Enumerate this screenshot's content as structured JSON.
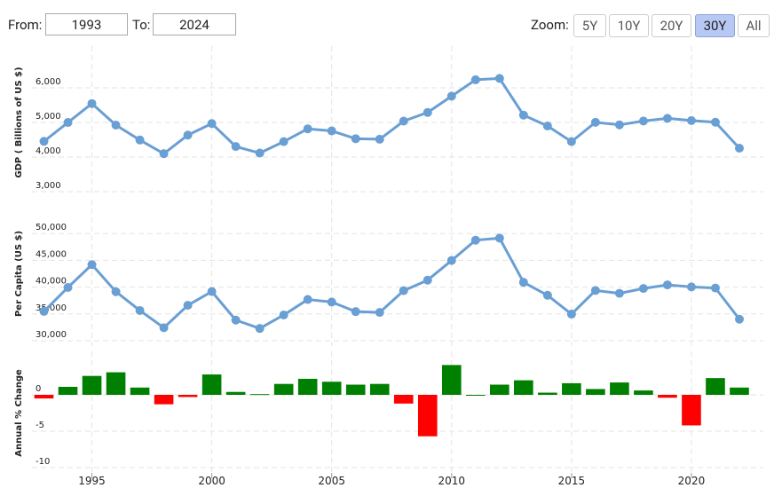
{
  "controls": {
    "from_label": "From:",
    "from": "1993",
    "to_label": "To:",
    "to": "2024",
    "zoom_label": "Zoom:",
    "zoom_options": [
      "5Y",
      "10Y",
      "20Y",
      "30Y",
      "All"
    ],
    "selected_zoom_index": 3
  },
  "chart_data": [
    {
      "type": "line",
      "y_label": "GDP ( Billions of US $)",
      "color": "#6a9fd4",
      "x": [
        1993,
        1994,
        1995,
        1996,
        1997,
        1998,
        1999,
        2000,
        2001,
        2002,
        2003,
        2004,
        2005,
        2006,
        2007,
        2008,
        2009,
        2010,
        2011,
        2012,
        2013,
        2014,
        2015,
        2016,
        2017,
        2018,
        2019,
        2020,
        2021,
        2022
      ],
      "values": [
        4454,
        4999,
        5546,
        4923,
        4492,
        4098,
        4635,
        4968,
        4304,
        4115,
        4446,
        4815,
        4755,
        4530,
        4515,
        5038,
        5289,
        5759,
        6233,
        6272,
        5212,
        4897,
        4445,
        5004,
        4931,
        5041,
        5118,
        5055,
        5006,
        4256
      ],
      "xlim": [
        1992.5,
        2023
      ],
      "xticks": [
        1995,
        2000,
        2005,
        2010,
        2015,
        2020
      ],
      "ylim": [
        3000,
        7000
      ],
      "yticks": [
        {
          "value": 3000,
          "label": "3,000"
        },
        {
          "value": 4000,
          "label": "4,000"
        },
        {
          "value": 5000,
          "label": "5,000"
        },
        {
          "value": 6000,
          "label": "6,000"
        }
      ],
      "grid": true
    },
    {
      "type": "line",
      "y_label": "Per Capita (US $)",
      "color": "#6a9fd4",
      "x": [
        1993,
        1994,
        1995,
        1996,
        1997,
        1998,
        1999,
        2000,
        2001,
        2002,
        2003,
        2004,
        2005,
        2006,
        2007,
        2008,
        2009,
        2010,
        2011,
        2012,
        2013,
        2014,
        2015,
        2016,
        2017,
        2018,
        2019,
        2020,
        2021,
        2022
      ],
      "values": [
        35478,
        39934,
        44198,
        39150,
        35636,
        32424,
        36610,
        39169,
        33846,
        32289,
        34808,
        37689,
        37218,
        35434,
        35275,
        39339,
        41309,
        44968,
        48760,
        49145,
        40898,
        38475,
        34961,
        39375,
        38834,
        39751,
        40416,
        40041,
        39827,
        34017
      ],
      "xlim": [
        1992.5,
        2023
      ],
      "xticks": [
        1995,
        2000,
        2005,
        2010,
        2015,
        2020
      ],
      "ylim": [
        30000,
        55000
      ],
      "yticks": [
        {
          "value": 30000,
          "label": "30,000"
        },
        {
          "value": 35000,
          "label": "35,000"
        },
        {
          "value": 40000,
          "label": "40,000"
        },
        {
          "value": 45000,
          "label": "45,000"
        },
        {
          "value": 50000,
          "label": "50,000"
        }
      ],
      "grid": true
    },
    {
      "type": "bar",
      "y_label": "Annual % Change",
      "positive_color": "#008000",
      "negative_color": "#ff0000",
      "x": [
        1993,
        1994,
        1995,
        1996,
        1997,
        1998,
        1999,
        2000,
        2001,
        2002,
        2003,
        2004,
        2005,
        2006,
        2007,
        2008,
        2009,
        2010,
        2011,
        2012,
        2013,
        2014,
        2015,
        2016,
        2017,
        2018,
        2019,
        2020,
        2021,
        2022
      ],
      "values": [
        -0.5,
        1.1,
        2.6,
        3.1,
        1.0,
        -1.3,
        -0.3,
        2.8,
        0.4,
        0.1,
        1.5,
        2.2,
        1.8,
        1.4,
        1.5,
        -1.2,
        -5.7,
        4.1,
        0.0,
        1.4,
        2.0,
        0.3,
        1.6,
        0.8,
        1.7,
        0.6,
        -0.4,
        -4.2,
        2.3,
        1.0
      ],
      "xlim": [
        1992.5,
        2023
      ],
      "xticks": [
        1995,
        2000,
        2005,
        2010,
        2015,
        2020
      ],
      "ylim": [
        -10,
        5
      ],
      "yticks": [
        -10,
        -5,
        0
      ],
      "grid": true
    }
  ]
}
